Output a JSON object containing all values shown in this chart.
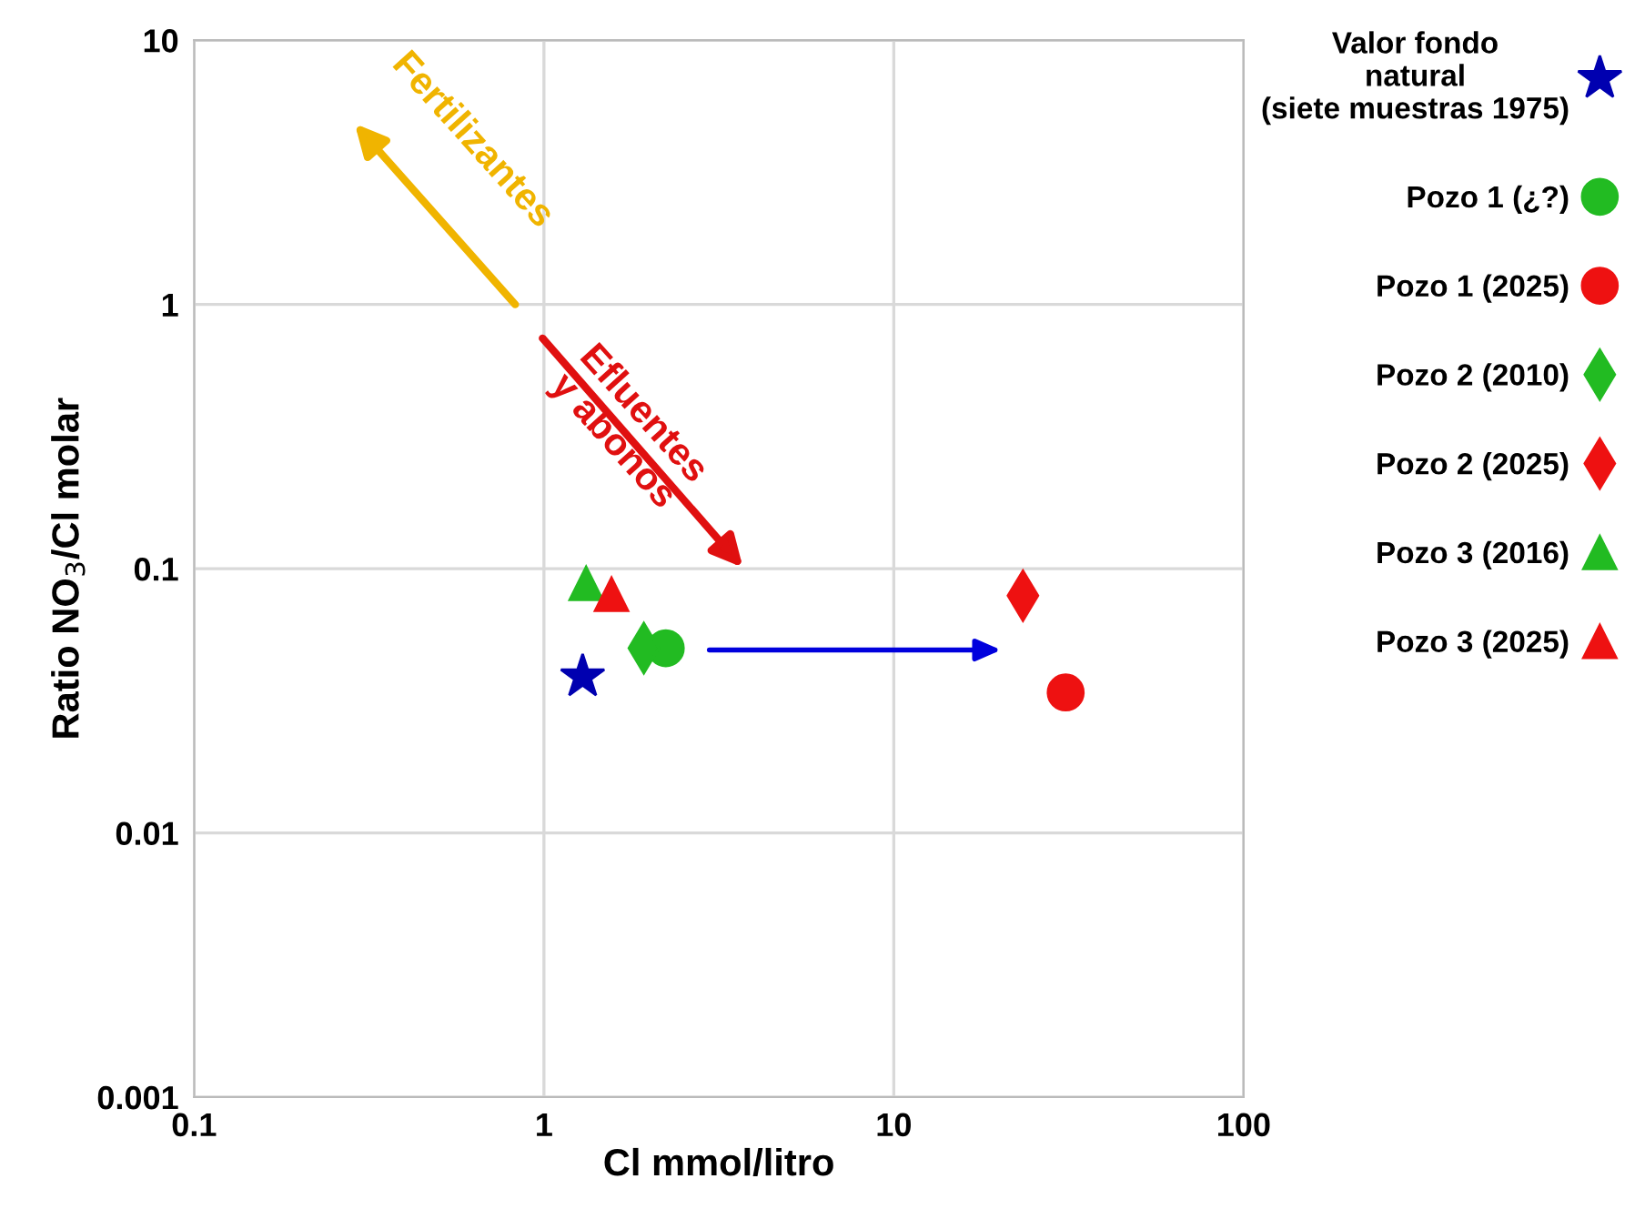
{
  "chart_data": {
    "type": "scatter",
    "xlabel": "Cl mmol/litro",
    "ylabel": "Ratio NO$_{3}$/Cl molar",
    "log": "xy",
    "xlim": [
      0.1,
      100
    ],
    "ylim": [
      0.001,
      10
    ],
    "xticks": [
      0.1,
      1,
      10,
      100
    ],
    "yticks": [
      0.001,
      0.01,
      0.1,
      1,
      10
    ],
    "grid": true,
    "legend": "right",
    "series": [
      {
        "name": "Valor fondo\nnatural\n(siete muestras 1975)",
        "color": "#0000b0",
        "marker": "star",
        "x": [
          1.29
        ],
        "values": [
          0.039
        ]
      },
      {
        "name": "Pozo 1 (¿?)",
        "color": "#22bb22",
        "marker": "circle",
        "x": [
          2.23
        ],
        "values": [
          0.05
        ]
      },
      {
        "name": "Pozo 1 (2025)",
        "color": "#ee1111",
        "marker": "circle",
        "x": [
          31
        ],
        "values": [
          0.034
        ]
      },
      {
        "name": "Pozo 2 (2010)",
        "color": "#22bb22",
        "marker": "diamond",
        "x": [
          1.93
        ],
        "values": [
          0.05
        ]
      },
      {
        "name": "Pozo 2 (2025)",
        "color": "#ee1111",
        "marker": "diamond",
        "x": [
          23.4
        ],
        "values": [
          0.079
        ]
      },
      {
        "name": "Pozo 3 (2016)",
        "color": "#22bb22",
        "marker": "triangle",
        "x": [
          1.32
        ],
        "values": [
          0.088
        ]
      },
      {
        "name": "Pozo 3 (2025)",
        "color": "#ee1111",
        "marker": "triangle",
        "x": [
          1.56
        ],
        "values": [
          0.08
        ]
      }
    ],
    "annotations": [
      "Fertilizantes",
      "Efluentes\ny abonos"
    ]
  }
}
